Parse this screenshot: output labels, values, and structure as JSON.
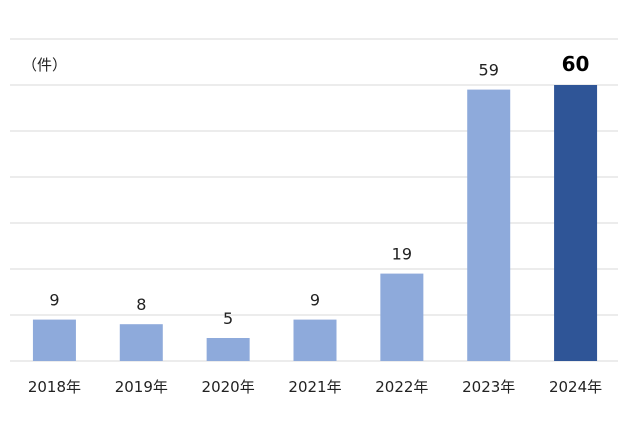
{
  "chart_data": {
    "type": "bar",
    "title": "",
    "xlabel": "",
    "ylabel": "",
    "unit_label": "（件）",
    "categories": [
      "2018年",
      "2019年",
      "2020年",
      "2021年",
      "2022年",
      "2023年",
      "2024年"
    ],
    "values": [
      9,
      8,
      5,
      9,
      19,
      59,
      60
    ],
    "ylim": [
      0,
      70
    ],
    "grid": true,
    "emphasized_index": 6,
    "colors": {
      "bar": "#8eaadb",
      "bar_emphasized": "#2f5597"
    }
  }
}
